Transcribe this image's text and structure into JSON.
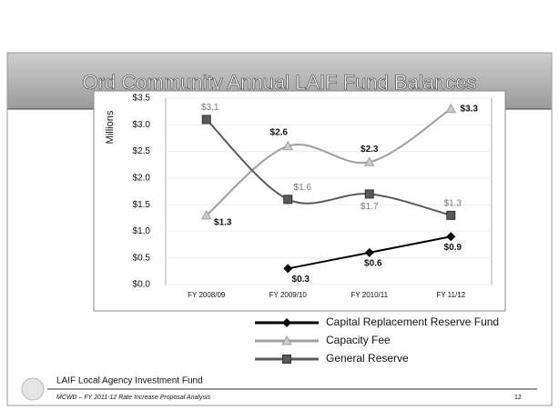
{
  "header": {
    "title": "Ord Community Annual LAIF Fund Balances"
  },
  "chart_data": {
    "type": "line",
    "y_axis_label": "Millions",
    "categories": [
      "FY 2008/09",
      "FY 2009/10",
      "FY 2010/11",
      "FY 11/12"
    ],
    "series": [
      {
        "name": "Capital Replacement Reserve Fund",
        "color": "#000000",
        "marker": "diamond",
        "smooth": false,
        "values": [
          null,
          0.3,
          0.6,
          0.9
        ],
        "value_labels": [
          null,
          "$0.3",
          "$0.6",
          "$0.9"
        ]
      },
      {
        "name": "Capacity Fee",
        "color": "#a0a0a0",
        "marker": "triangle",
        "smooth": true,
        "values": [
          1.3,
          2.6,
          2.3,
          3.3
        ],
        "value_labels": [
          "$1.3",
          "$2.6",
          "$2.3",
          "$3.3"
        ]
      },
      {
        "name": "General Reserve",
        "color": "#5a5a5a",
        "marker": "square",
        "smooth": true,
        "values": [
          3.1,
          1.6,
          1.7,
          1.3
        ],
        "value_labels": [
          "$3.1",
          "$1.6",
          "$1.7",
          "$1.3"
        ]
      }
    ],
    "ylim": [
      0,
      3.5
    ],
    "yticks": [
      {
        "value": 0,
        "label": "$0.0"
      },
      {
        "value": 0.5,
        "label": "$0.5"
      },
      {
        "value": 1,
        "label": "$1.0"
      },
      {
        "value": 1.5,
        "label": "$1.5"
      },
      {
        "value": 2,
        "label": "$2.0"
      },
      {
        "value": 2.5,
        "label": "$2.5"
      },
      {
        "value": 3,
        "label": "$3.0"
      },
      {
        "value": 3.5,
        "label": "$3.5"
      }
    ],
    "grid": true,
    "legend": "bottom"
  },
  "footnote": "LAIF  Local Agency Investment Fund",
  "footer": {
    "text": "MCWD – FY 2011-12 Rate Increase Proposal Analysis",
    "page": "12"
  }
}
